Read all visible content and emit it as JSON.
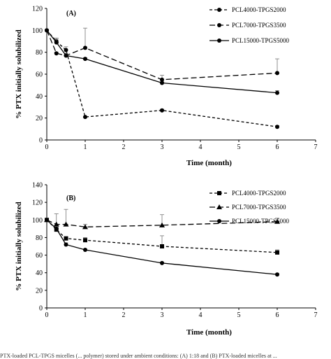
{
  "caption": "PTX-loaded PCL-TPGS micelles (... polymer) stored under ambient conditions: (A) 1:18 and (B) PTX-loaded micelles at ...",
  "chart_data": [
    {
      "type": "line",
      "panel_label": "(A)",
      "xlabel": "Time (month)",
      "ylabel": "% PTX initially solubilized",
      "xlim": [
        0,
        7
      ],
      "ylim": [
        0,
        120
      ],
      "xticks": [
        "0",
        "1",
        "2",
        "3",
        "4",
        "5",
        "6",
        "7"
      ],
      "yticks": [
        "0",
        "20",
        "40",
        "60",
        "80",
        "100",
        "120"
      ],
      "grid": false,
      "legend_position": "top-right",
      "series": [
        {
          "name": "PCL4000-TPGS2000",
          "marker": "circle",
          "dash": "short-dash",
          "x": [
            0,
            0.25,
            0.5,
            1,
            3,
            6
          ],
          "y": [
            100,
            90,
            82,
            21,
            27,
            12
          ],
          "err": [
            0,
            3,
            3,
            0,
            1,
            1
          ]
        },
        {
          "name": "PCL7000-TPGS3500",
          "marker": "circle",
          "dash": "long-dash",
          "x": [
            0,
            0.25,
            0.5,
            1,
            3,
            6
          ],
          "y": [
            100,
            79,
            77,
            84,
            55,
            61
          ],
          "err": [
            0,
            1,
            2,
            18,
            4,
            13
          ]
        },
        {
          "name": "PCL15000-TPGS5000",
          "marker": "circle",
          "dash": "solid",
          "x": [
            0,
            0.25,
            0.5,
            1,
            3,
            6
          ],
          "y": [
            100,
            89,
            77,
            74,
            52,
            43
          ],
          "err": [
            0,
            3,
            2,
            1,
            1,
            2
          ]
        }
      ]
    },
    {
      "type": "line",
      "panel_label": "(B)",
      "xlabel": "Time (month)",
      "ylabel": "% PTX initially solubilized",
      "xlim": [
        0,
        7
      ],
      "ylim": [
        0,
        140
      ],
      "xticks": [
        "0",
        "1",
        "2",
        "3",
        "4",
        "5",
        "6",
        "7"
      ],
      "yticks": [
        "0",
        "20",
        "40",
        "60",
        "80",
        "100",
        "120",
        "140"
      ],
      "grid": false,
      "legend_position": "top-right",
      "series": [
        {
          "name": "PCL4000-TPGS2000",
          "marker": "square",
          "dash": "short-dash",
          "x": [
            0,
            0.25,
            0.5,
            1,
            3,
            6
          ],
          "y": [
            100,
            89,
            79,
            77,
            70,
            63
          ],
          "err": [
            0,
            3,
            2,
            3,
            12,
            3
          ]
        },
        {
          "name": "PCL7000-TPGS3500",
          "marker": "triangle",
          "dash": "long-dash",
          "x": [
            0,
            0.25,
            0.5,
            1,
            3,
            6
          ],
          "y": [
            100,
            95,
            95,
            92,
            94,
            98
          ],
          "err": [
            0,
            12,
            17,
            3,
            12,
            4
          ]
        },
        {
          "name": "PCL15000-TPGS5000",
          "marker": "circle",
          "dash": "solid",
          "x": [
            0,
            0.25,
            0.5,
            1,
            3,
            6
          ],
          "y": [
            100,
            90,
            72,
            66,
            51,
            38
          ],
          "err": [
            0,
            2,
            2,
            1,
            1,
            1
          ]
        }
      ]
    }
  ]
}
